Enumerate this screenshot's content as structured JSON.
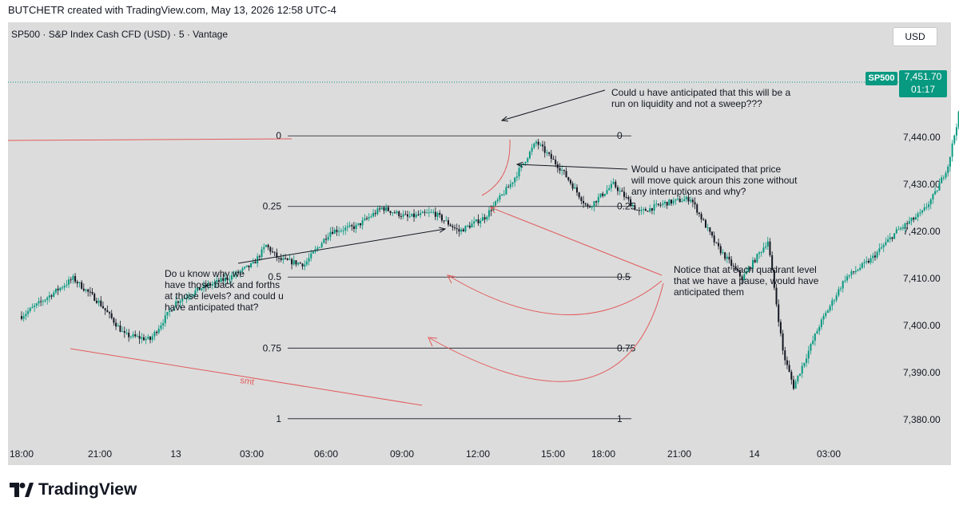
{
  "header": {
    "attribution": "BUTCHETR created with TradingView.com, May 13, 2026 12:58 UTC-4"
  },
  "symbol_line": "SP500 · S&P Index Cash CFD (USD) · 5 · Vantage",
  "currency_button": "USD",
  "price_label": {
    "symbol": "SP500",
    "price": "7,451.70",
    "countdown": "01:17"
  },
  "footer": {
    "brand": "TradingView"
  },
  "colors": {
    "up": "#089981",
    "down": "#131722",
    "annotation": "#e35a5a",
    "price_line": "#089981"
  },
  "chart_data": {
    "type": "candlestick",
    "timeframe": "5",
    "y_axis": {
      "ticks": [
        "7,440.00",
        "7,430.00",
        "7,420.00",
        "7,410.00",
        "7,400.00",
        "7,390.00",
        "7,380.00"
      ],
      "tick_values": [
        7440,
        7430,
        7420,
        7410,
        7400,
        7390,
        7380
      ],
      "ylim": [
        7375,
        7456
      ]
    },
    "x_axis": {
      "ticks": [
        "18:00",
        "21:00",
        "13",
        "03:00",
        "06:00",
        "09:00",
        "12:00",
        "15:00",
        "18:00",
        "21:00",
        "14",
        "03:00"
      ]
    },
    "last_price": 7451.7,
    "path_hours": [
      0,
      1,
      2,
      3,
      4,
      5,
      6,
      7,
      8,
      9,
      9.5,
      10,
      11,
      12,
      13,
      14,
      15,
      16,
      17,
      18,
      19,
      20,
      21,
      22,
      23,
      24,
      25,
      26,
      27,
      28,
      29,
      29.6,
      30,
      31,
      31.5,
      32,
      33,
      34,
      35,
      35.5,
      36,
      36.5,
      37,
      38,
      38.5,
      39,
      39.7
    ],
    "path_prices": [
      7402,
      7406,
      7410,
      7405,
      7398,
      7397,
      7405,
      7408,
      7410,
      7413,
      7417,
      7414,
      7413,
      7420,
      7421,
      7425,
      7423,
      7424,
      7420,
      7423,
      7430,
      7439,
      7433,
      7425,
      7430,
      7424,
      7426,
      7427,
      7417,
      7410,
      7418,
      7394,
      7387,
      7400,
      7405,
      7410,
      7414,
      7420,
      7424,
      7428,
      7434,
      7447,
      7445,
      7447,
      7444,
      7446,
      7451.7
    ],
    "fib_levels": [
      {
        "label": "0",
        "value": 7440.3
      },
      {
        "label": "0.25",
        "value": 7425.3
      },
      {
        "label": "0.5",
        "value": 7410.3
      },
      {
        "label": "0.75",
        "value": 7395.2
      },
      {
        "label": "1",
        "value": 7380.2
      }
    ],
    "annotations": [
      "Could u have anticipated that this will be a",
      "run on liquidity and not a sweep???",
      "Would u have anticipated that price",
      "will move quick aroun this zone without",
      "any interruptions and why?",
      "Do u know why we",
      "have those back and forths",
      "at those levels? and could u",
      "have anticipated that?",
      "Notice that at each quadrant level",
      "that we have a pause, would have",
      "anticipated them",
      "smt"
    ]
  }
}
